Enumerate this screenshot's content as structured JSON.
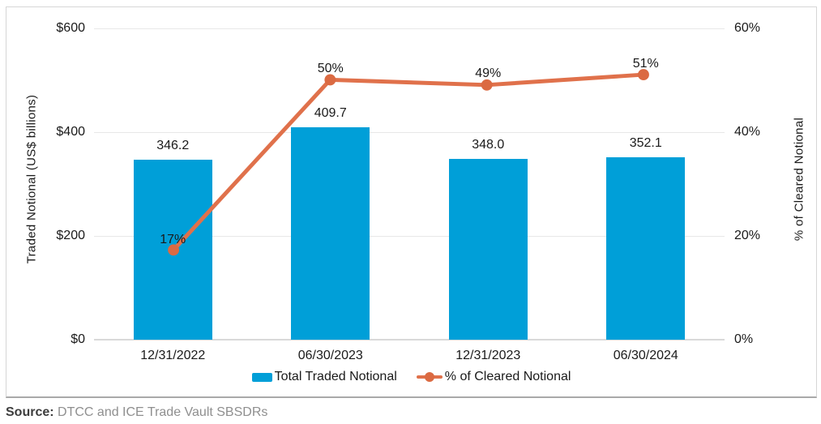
{
  "chart_data": {
    "type": "bar",
    "subtype": "combo-bar-line-dual-axis",
    "categories": [
      "12/31/2022",
      "06/30/2023",
      "12/31/2023",
      "06/30/2024"
    ],
    "series": [
      {
        "name": "Total Traded Notional",
        "type": "bar",
        "axis": "left",
        "values": [
          346.2,
          409.7,
          348.0,
          352.1
        ],
        "value_labels": [
          "346.2",
          "409.7",
          "348.0",
          "352.1"
        ],
        "color": "#009FD8"
      },
      {
        "name": "% of Cleared Notional",
        "type": "line",
        "axis": "right",
        "values": [
          17,
          50,
          49,
          51
        ],
        "value_labels": [
          "17%",
          "50%",
          "49%",
          "51%"
        ],
        "color": "#E0714B",
        "marker_color": "#DB6A42"
      }
    ],
    "left_axis": {
      "label": "Traded Notional (US$ billions)",
      "min": 0,
      "max": 600,
      "ticks": [
        "$0",
        "$200",
        "$400",
        "$600"
      ]
    },
    "right_axis": {
      "label": "% of Cleared Notional",
      "min": 0,
      "max": 60,
      "ticks": [
        "0%",
        "20%",
        "40%",
        "60%"
      ]
    },
    "legend_position": "bottom",
    "grid": "horizontal"
  },
  "source": {
    "prefix": "Source:",
    "text": "DTCC and ICE Trade Vault SBSDRs"
  }
}
